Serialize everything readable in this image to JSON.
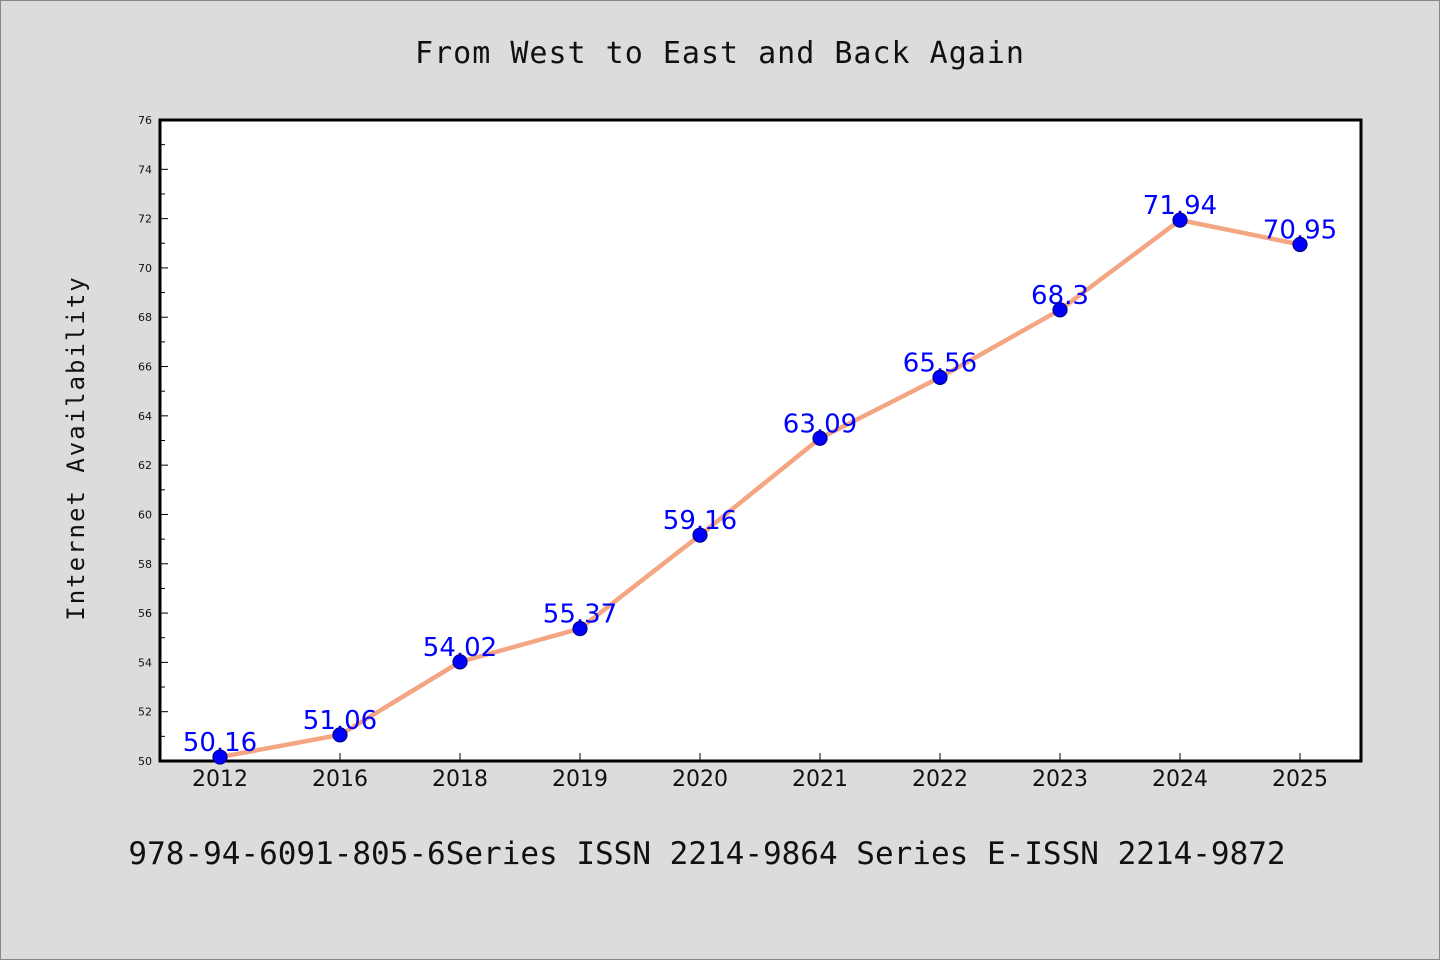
{
  "chart_data": {
    "type": "line",
    "title": "From West to East and Back Again",
    "xlabel": "",
    "ylabel": "Internet Availability",
    "categories": [
      "2012",
      "2016",
      "2018",
      "2019",
      "2020",
      "2021",
      "2022",
      "2023",
      "2024",
      "2025"
    ],
    "series": [
      {
        "values": [
          50.16,
          51.06,
          54.02,
          55.37,
          59.16,
          63.09,
          65.56,
          68.3,
          71.94,
          70.95
        ]
      }
    ],
    "data_labels": [
      "50.16",
      "51.06",
      "54.02",
      "55.37",
      "59.16",
      "63.09",
      "65.56",
      "68.3",
      "71.94",
      "70.95"
    ],
    "ylim": [
      50,
      76
    ],
    "yticks": [
      "50",
      "52",
      "54",
      "56",
      "58",
      "60",
      "62",
      "64",
      "66",
      "68",
      "70",
      "72",
      "74",
      "76"
    ],
    "grid": false,
    "legend": "none",
    "colors": {
      "line": "#f4a582",
      "marker": "#0000ff",
      "marker_edge": "#00008b",
      "data_label": "#0000ff",
      "background": "#dcdcdc",
      "plot_area": "#ffffff"
    }
  },
  "caption": "978-94-6091-805-6Series ISSN 2214-9864 Series E-ISSN 2214-9872"
}
